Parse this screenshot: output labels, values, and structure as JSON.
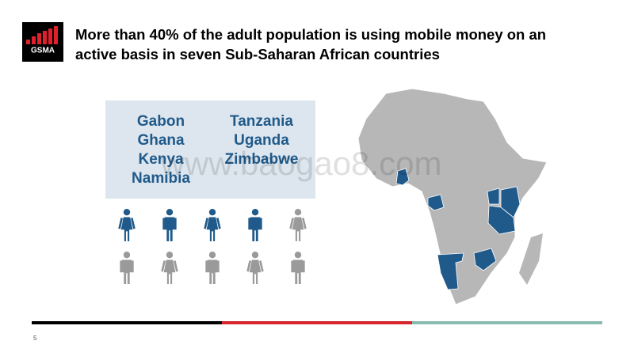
{
  "logo": "GSMA",
  "title": {
    "line1": "More than 40% of the adult population is using mobile money on an",
    "line2": "active basis in seven Sub-Saharan African countries"
  },
  "countries": {
    "left": [
      "Gabon",
      "Ghana",
      "Kenya",
      "Namibia"
    ],
    "right": [
      "Tanzania",
      "Uganda",
      "Zimbabwe"
    ]
  },
  "watermark": "www.baogao8.com",
  "page_number": "5"
}
